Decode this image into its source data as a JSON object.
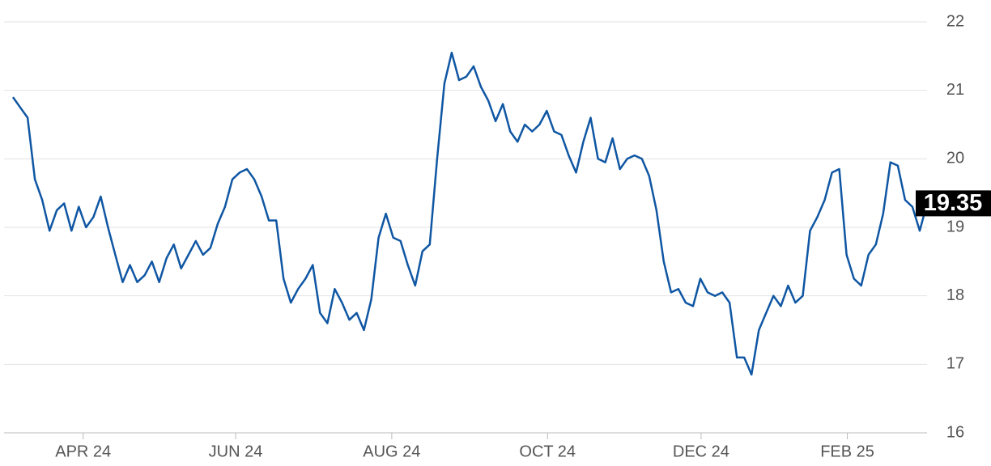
{
  "chart_data": {
    "type": "line",
    "color": "#0f56a3",
    "values": [
      20.9,
      20.75,
      20.6,
      19.7,
      19.4,
      18.95,
      19.25,
      19.35,
      18.95,
      19.3,
      19.0,
      19.15,
      19.45,
      19.0,
      18.6,
      18.2,
      18.45,
      18.2,
      18.3,
      18.5,
      18.2,
      18.55,
      18.75,
      18.4,
      18.6,
      18.8,
      18.6,
      18.7,
      19.05,
      19.3,
      19.7,
      19.8,
      19.85,
      19.7,
      19.45,
      19.1,
      19.1,
      18.25,
      17.9,
      18.1,
      18.25,
      18.45,
      17.75,
      17.6,
      18.1,
      17.9,
      17.65,
      17.75,
      17.5,
      17.95,
      18.85,
      19.2,
      18.85,
      18.8,
      18.45,
      18.15,
      18.65,
      18.75,
      20.0,
      21.1,
      21.55,
      21.15,
      21.2,
      21.35,
      21.05,
      20.85,
      20.55,
      20.8,
      20.4,
      20.25,
      20.5,
      20.4,
      20.5,
      20.7,
      20.4,
      20.35,
      20.05,
      19.8,
      20.25,
      20.6,
      20.0,
      19.95,
      20.3,
      19.85,
      20.0,
      20.05,
      20.0,
      19.75,
      19.25,
      18.5,
      18.05,
      18.1,
      17.9,
      17.85,
      18.25,
      18.05,
      18.0,
      18.05,
      17.9,
      17.1,
      17.1,
      16.85,
      17.5,
      17.75,
      18.0,
      17.85,
      18.15,
      17.9,
      18.0,
      18.95,
      19.15,
      19.4,
      19.8,
      19.85,
      18.6,
      18.25,
      18.15,
      18.6,
      18.75,
      19.2,
      19.95,
      19.9,
      19.4,
      19.3,
      18.95,
      19.35
    ],
    "xticks": [
      {
        "value": 9.6,
        "label": "APR 24"
      },
      {
        "value": 30.45,
        "label": "JUN 24"
      },
      {
        "value": 51.8,
        "label": "AUG 24"
      },
      {
        "value": 73.1,
        "label": "OCT 24"
      },
      {
        "value": 94.1,
        "label": "DEC 24"
      },
      {
        "value": 114.1,
        "label": "FEB 25"
      }
    ],
    "ylim": [
      16,
      22
    ],
    "yticks": [
      16,
      17,
      18,
      19,
      20,
      21,
      22
    ],
    "grid": true
  }
}
